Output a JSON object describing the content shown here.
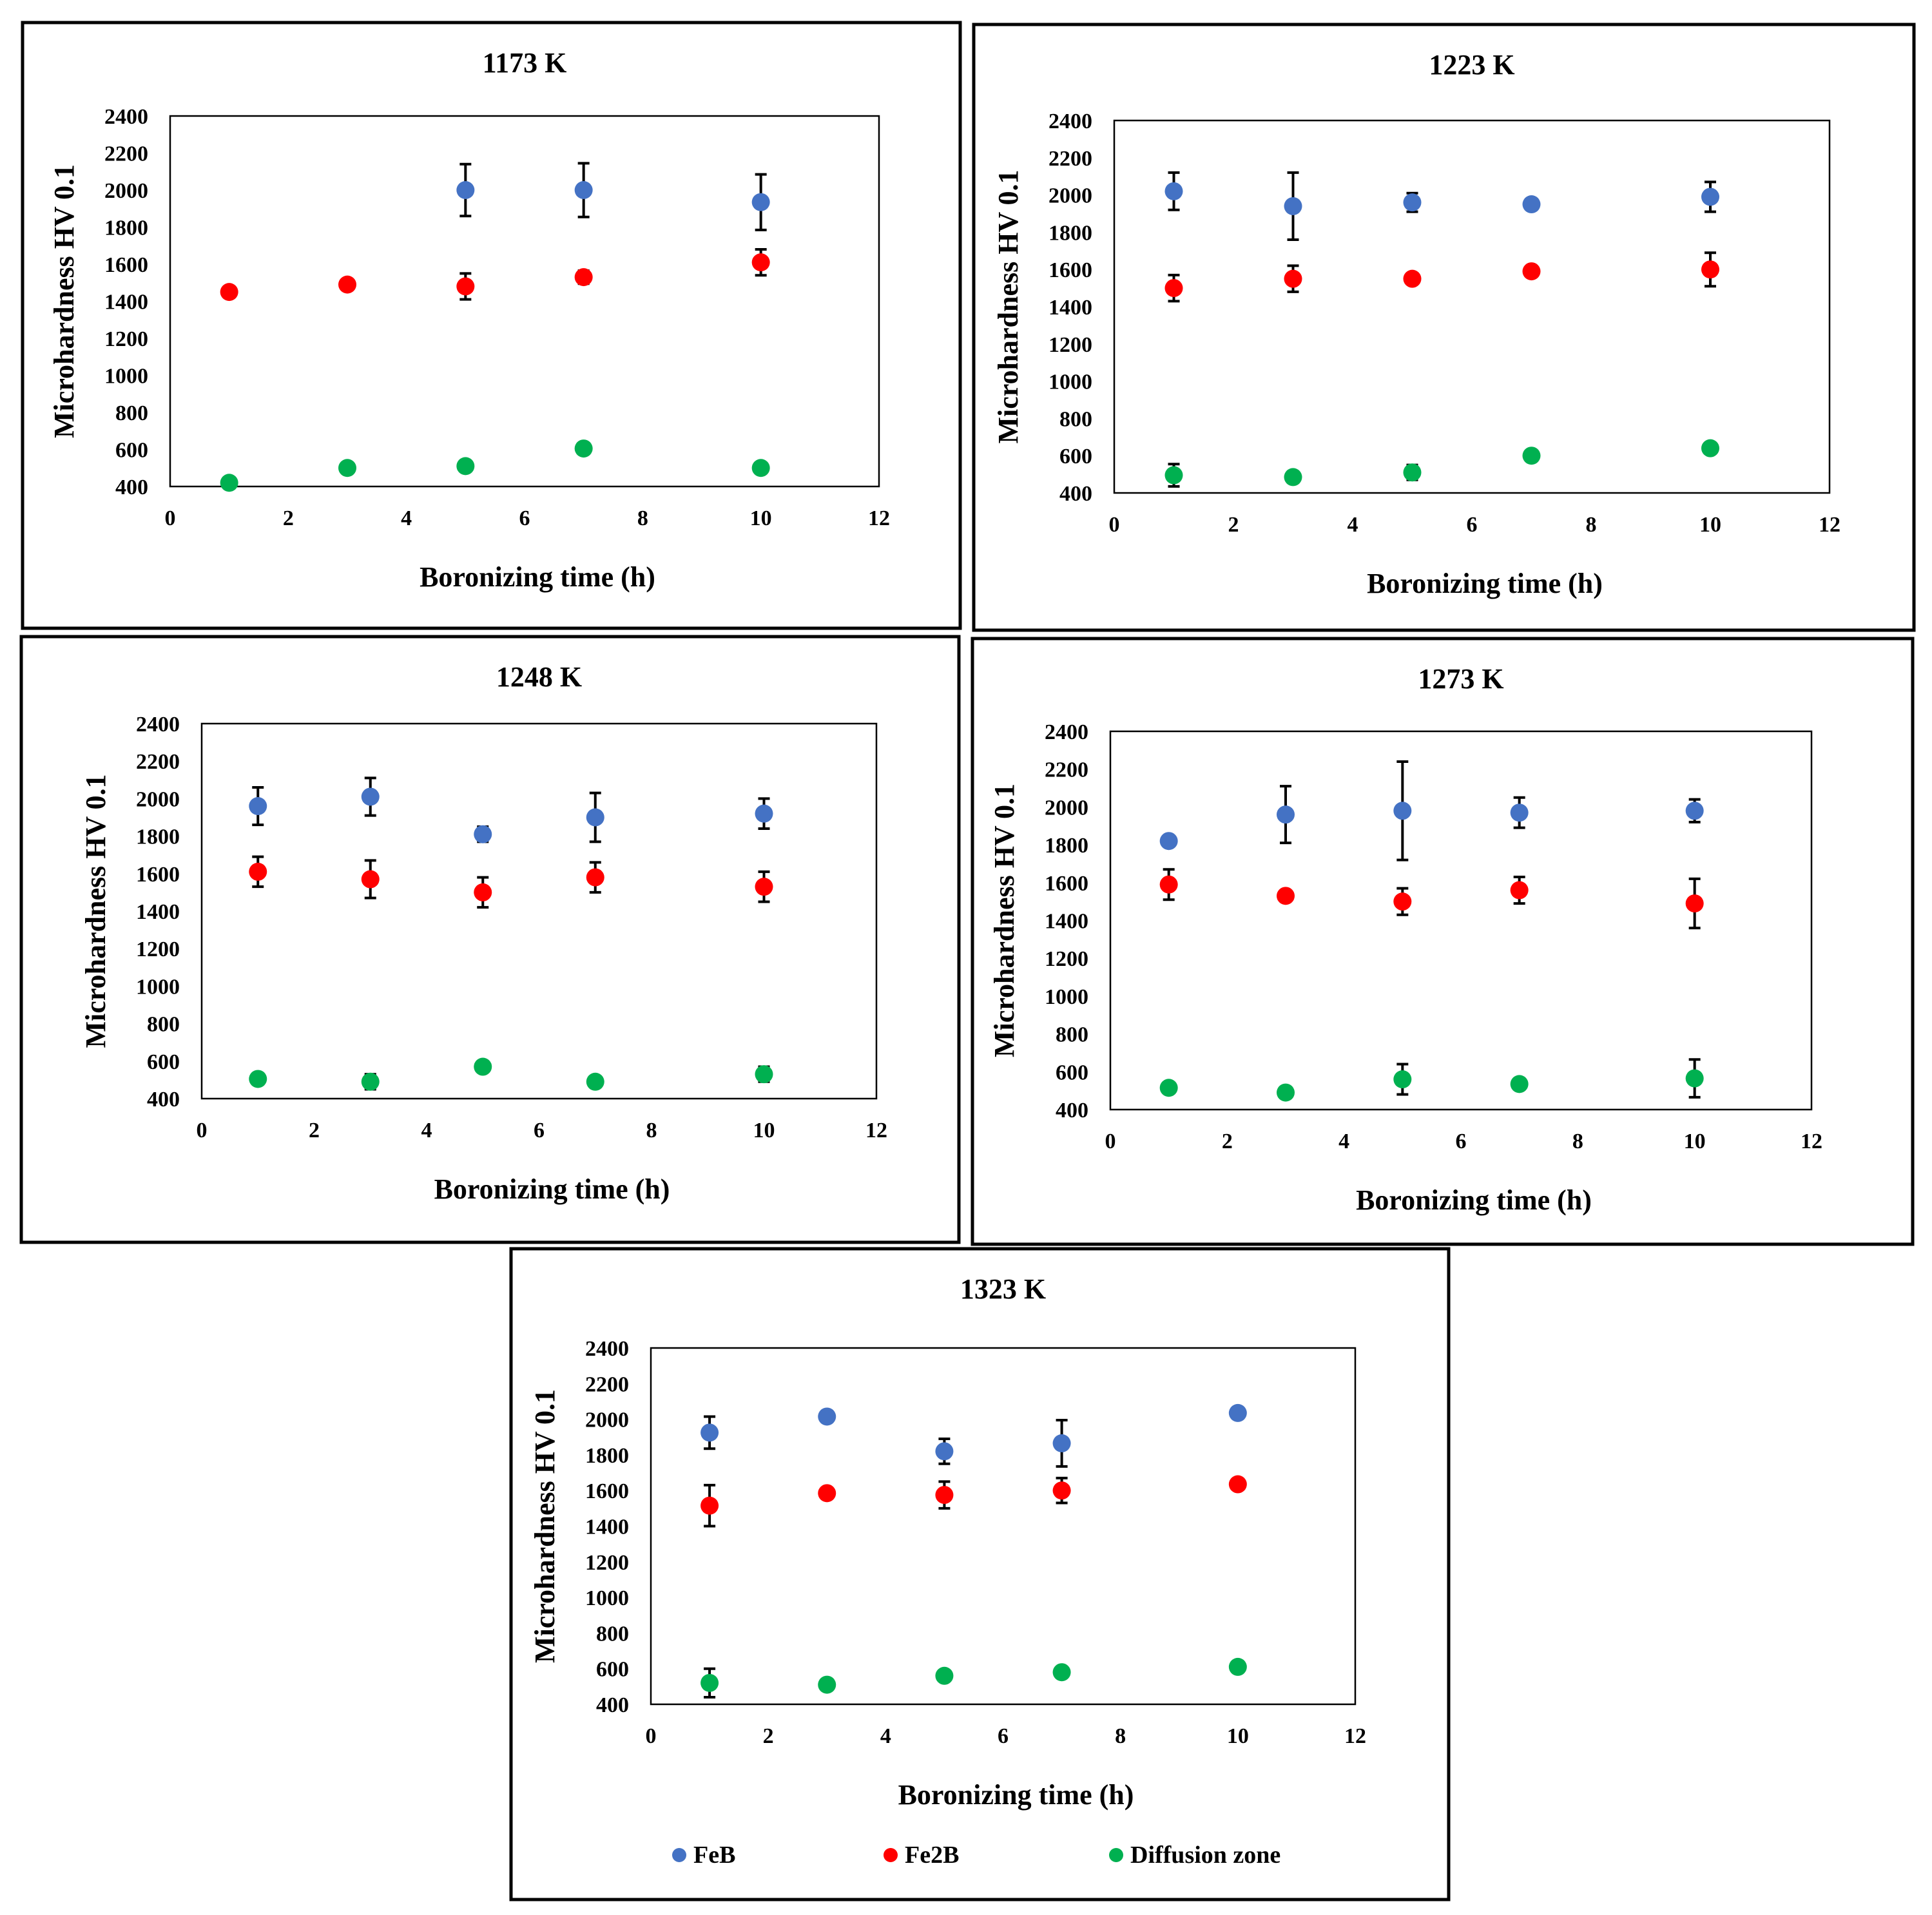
{
  "figure": {
    "legend": [
      {
        "name": "FeB",
        "color": "#4472c4"
      },
      {
        "name": "Fe2B",
        "color": "#ff0000"
      },
      {
        "name": "Diffusion zone",
        "color": "#00b050"
      }
    ]
  },
  "chart_data": [
    {
      "type": "scatter",
      "title": "1173 K",
      "xlabel": "Boronizing time (h)",
      "ylabel": "Microhardness HV 0.1",
      "xlim": [
        0,
        12
      ],
      "ylim": [
        400,
        2400
      ],
      "xticks": [
        "0",
        "2",
        "4",
        "6",
        "8",
        "10",
        "12"
      ],
      "yticks": [
        "400",
        "600",
        "800",
        "1000",
        "1200",
        "1400",
        "1600",
        "1800",
        "2000",
        "2200",
        "2400"
      ],
      "grid": true,
      "series": [
        {
          "name": "FeB",
          "color": "#4472c4",
          "points": [
            {
              "x": 5,
              "y": 2000,
              "err": 140
            },
            {
              "x": 7,
              "y": 2000,
              "err": 145
            },
            {
              "x": 10,
              "y": 1935,
              "err": 150
            }
          ]
        },
        {
          "name": "Fe2B",
          "color": "#ff0000",
          "points": [
            {
              "x": 1,
              "y": 1450,
              "err": 0
            },
            {
              "x": 3,
              "y": 1490,
              "err": 0
            },
            {
              "x": 5,
              "y": 1480,
              "err": 70
            },
            {
              "x": 7,
              "y": 1530,
              "err": 35
            },
            {
              "x": 10,
              "y": 1610,
              "err": 70
            }
          ]
        },
        {
          "name": "Diffusion zone",
          "color": "#00b050",
          "points": [
            {
              "x": 1,
              "y": 420,
              "err": 0
            },
            {
              "x": 3,
              "y": 500,
              "err": 0
            },
            {
              "x": 5,
              "y": 510,
              "err": 0
            },
            {
              "x": 7,
              "y": 605,
              "err": 0
            },
            {
              "x": 10,
              "y": 500,
              "err": 0
            }
          ]
        }
      ]
    },
    {
      "type": "scatter",
      "title": "1223 K",
      "xlabel": "Boronizing time (h)",
      "ylabel": "Microhardness HV 0.1",
      "xlim": [
        0,
        12
      ],
      "ylim": [
        400,
        2400
      ],
      "xticks": [
        "0",
        "2",
        "4",
        "6",
        "8",
        "10",
        "12"
      ],
      "yticks": [
        "400",
        "600",
        "800",
        "1000",
        "1200",
        "1400",
        "1600",
        "1800",
        "2000",
        "2200",
        "2400"
      ],
      "grid": true,
      "series": [
        {
          "name": "FeB",
          "color": "#4472c4",
          "points": [
            {
              "x": 1,
              "y": 2020,
              "err": 100
            },
            {
              "x": 3,
              "y": 1940,
              "err": 180
            },
            {
              "x": 5,
              "y": 1960,
              "err": 50
            },
            {
              "x": 7,
              "y": 1950,
              "err": 0
            },
            {
              "x": 10,
              "y": 1990,
              "err": 80
            }
          ]
        },
        {
          "name": "Fe2B",
          "color": "#ff0000",
          "points": [
            {
              "x": 1,
              "y": 1500,
              "err": 70
            },
            {
              "x": 3,
              "y": 1550,
              "err": 70
            },
            {
              "x": 5,
              "y": 1550,
              "err": 0
            },
            {
              "x": 7,
              "y": 1590,
              "err": 0
            },
            {
              "x": 10,
              "y": 1600,
              "err": 90
            }
          ]
        },
        {
          "name": "Diffusion zone",
          "color": "#00b050",
          "points": [
            {
              "x": 1,
              "y": 495,
              "err": 60
            },
            {
              "x": 3,
              "y": 485,
              "err": 0
            },
            {
              "x": 5,
              "y": 510,
              "err": 40
            },
            {
              "x": 7,
              "y": 600,
              "err": 0
            },
            {
              "x": 10,
              "y": 640,
              "err": 0
            }
          ]
        }
      ]
    },
    {
      "type": "scatter",
      "title": "1248 K",
      "xlabel": "Boronizing time (h)",
      "ylabel": "Microhardness HV 0.1",
      "xlim": [
        0,
        12
      ],
      "ylim": [
        400,
        2400
      ],
      "xticks": [
        "0",
        "2",
        "4",
        "6",
        "8",
        "10",
        "12"
      ],
      "yticks": [
        "400",
        "600",
        "800",
        "1000",
        "1200",
        "1400",
        "1600",
        "1800",
        "2000",
        "2200",
        "2400"
      ],
      "grid": true,
      "series": [
        {
          "name": "FeB",
          "color": "#4472c4",
          "points": [
            {
              "x": 1,
              "y": 1960,
              "err": 100
            },
            {
              "x": 3,
              "y": 2010,
              "err": 100
            },
            {
              "x": 5,
              "y": 1810,
              "err": 40
            },
            {
              "x": 7,
              "y": 1900,
              "err": 130
            },
            {
              "x": 10,
              "y": 1920,
              "err": 80
            }
          ]
        },
        {
          "name": "Fe2B",
          "color": "#ff0000",
          "points": [
            {
              "x": 1,
              "y": 1610,
              "err": 80
            },
            {
              "x": 3,
              "y": 1570,
              "err": 100
            },
            {
              "x": 5,
              "y": 1500,
              "err": 80
            },
            {
              "x": 7,
              "y": 1580,
              "err": 80
            },
            {
              "x": 10,
              "y": 1530,
              "err": 80
            }
          ]
        },
        {
          "name": "Diffusion zone",
          "color": "#00b050",
          "points": [
            {
              "x": 1,
              "y": 505,
              "err": 0
            },
            {
              "x": 3,
              "y": 490,
              "err": 40
            },
            {
              "x": 5,
              "y": 570,
              "err": 0
            },
            {
              "x": 7,
              "y": 490,
              "err": 0
            },
            {
              "x": 10,
              "y": 530,
              "err": 40
            }
          ]
        }
      ]
    },
    {
      "type": "scatter",
      "title": "1273 K",
      "xlabel": "Boronizing time (h)",
      "ylabel": "Microhardness HV 0.1",
      "xlim": [
        0,
        12
      ],
      "ylim": [
        400,
        2400
      ],
      "xticks": [
        "0",
        "2",
        "4",
        "6",
        "8",
        "10",
        "12"
      ],
      "yticks": [
        "400",
        "600",
        "800",
        "1000",
        "1200",
        "1400",
        "1600",
        "1800",
        "2000",
        "2200",
        "2400"
      ],
      "grid": true,
      "series": [
        {
          "name": "FeB",
          "color": "#4472c4",
          "points": [
            {
              "x": 1,
              "y": 1820,
              "err": 0
            },
            {
              "x": 3,
              "y": 1960,
              "err": 150
            },
            {
              "x": 5,
              "y": 1980,
              "err": 260
            },
            {
              "x": 7,
              "y": 1970,
              "err": 80
            },
            {
              "x": 10,
              "y": 1980,
              "err": 60
            }
          ]
        },
        {
          "name": "Fe2B",
          "color": "#ff0000",
          "points": [
            {
              "x": 1,
              "y": 1590,
              "err": 80
            },
            {
              "x": 3,
              "y": 1530,
              "err": 30
            },
            {
              "x": 5,
              "y": 1500,
              "err": 70
            },
            {
              "x": 7,
              "y": 1560,
              "err": 70
            },
            {
              "x": 10,
              "y": 1490,
              "err": 130
            }
          ]
        },
        {
          "name": "Diffusion zone",
          "color": "#00b050",
          "points": [
            {
              "x": 1,
              "y": 515,
              "err": 0
            },
            {
              "x": 3,
              "y": 490,
              "err": 0
            },
            {
              "x": 5,
              "y": 560,
              "err": 80
            },
            {
              "x": 7,
              "y": 535,
              "err": 0
            },
            {
              "x": 10,
              "y": 565,
              "err": 100
            }
          ]
        }
      ]
    },
    {
      "type": "scatter",
      "title": "1323 K",
      "xlabel": "Boronizing time (h)",
      "ylabel": "Microhardness HV 0.1",
      "xlim": [
        0,
        12
      ],
      "ylim": [
        400,
        2400
      ],
      "xticks": [
        "0",
        "2",
        "4",
        "6",
        "8",
        "10",
        "12"
      ],
      "yticks": [
        "400",
        "600",
        "800",
        "1000",
        "1200",
        "1400",
        "1600",
        "1800",
        "2000",
        "2200",
        "2400"
      ],
      "grid": true,
      "series": [
        {
          "name": "FeB",
          "color": "#4472c4",
          "points": [
            {
              "x": 1,
              "y": 1925,
              "err": 90
            },
            {
              "x": 3,
              "y": 2015,
              "err": 30
            },
            {
              "x": 5,
              "y": 1820,
              "err": 70
            },
            {
              "x": 7,
              "y": 1865,
              "err": 130
            },
            {
              "x": 10,
              "y": 2035,
              "err": 0
            }
          ]
        },
        {
          "name": "Fe2B",
          "color": "#ff0000",
          "points": [
            {
              "x": 1,
              "y": 1515,
              "err": 115
            },
            {
              "x": 3,
              "y": 1585,
              "err": 30
            },
            {
              "x": 5,
              "y": 1575,
              "err": 75
            },
            {
              "x": 7,
              "y": 1600,
              "err": 70
            },
            {
              "x": 10,
              "y": 1635,
              "err": 0
            }
          ]
        },
        {
          "name": "Diffusion zone",
          "color": "#00b050",
          "points": [
            {
              "x": 1,
              "y": 520,
              "err": 80
            },
            {
              "x": 3,
              "y": 510,
              "err": 0
            },
            {
              "x": 5,
              "y": 560,
              "err": 30
            },
            {
              "x": 7,
              "y": 580,
              "err": 0
            },
            {
              "x": 10,
              "y": 610,
              "err": 0
            }
          ]
        }
      ]
    }
  ]
}
